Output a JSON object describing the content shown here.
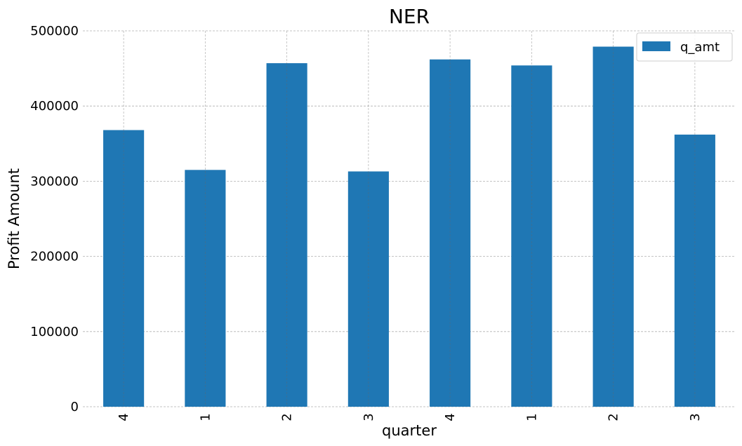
{
  "chart_data": {
    "type": "bar",
    "title": "NER",
    "xlabel": "quarter",
    "ylabel": "Profit Amount",
    "categories": [
      "4",
      "1",
      "2",
      "3",
      "4",
      "1",
      "2",
      "3"
    ],
    "series": [
      {
        "name": "q_amt",
        "values": [
          368000,
          315000,
          457000,
          313000,
          462000,
          454000,
          479000,
          362000
        ]
      }
    ],
    "ylim": [
      0,
      500000
    ],
    "yticks": [
      "0",
      "100000",
      "200000",
      "300000",
      "400000",
      "500000"
    ],
    "grid": true,
    "legend_position": "top-right",
    "bar_color": "#1f77b4"
  }
}
